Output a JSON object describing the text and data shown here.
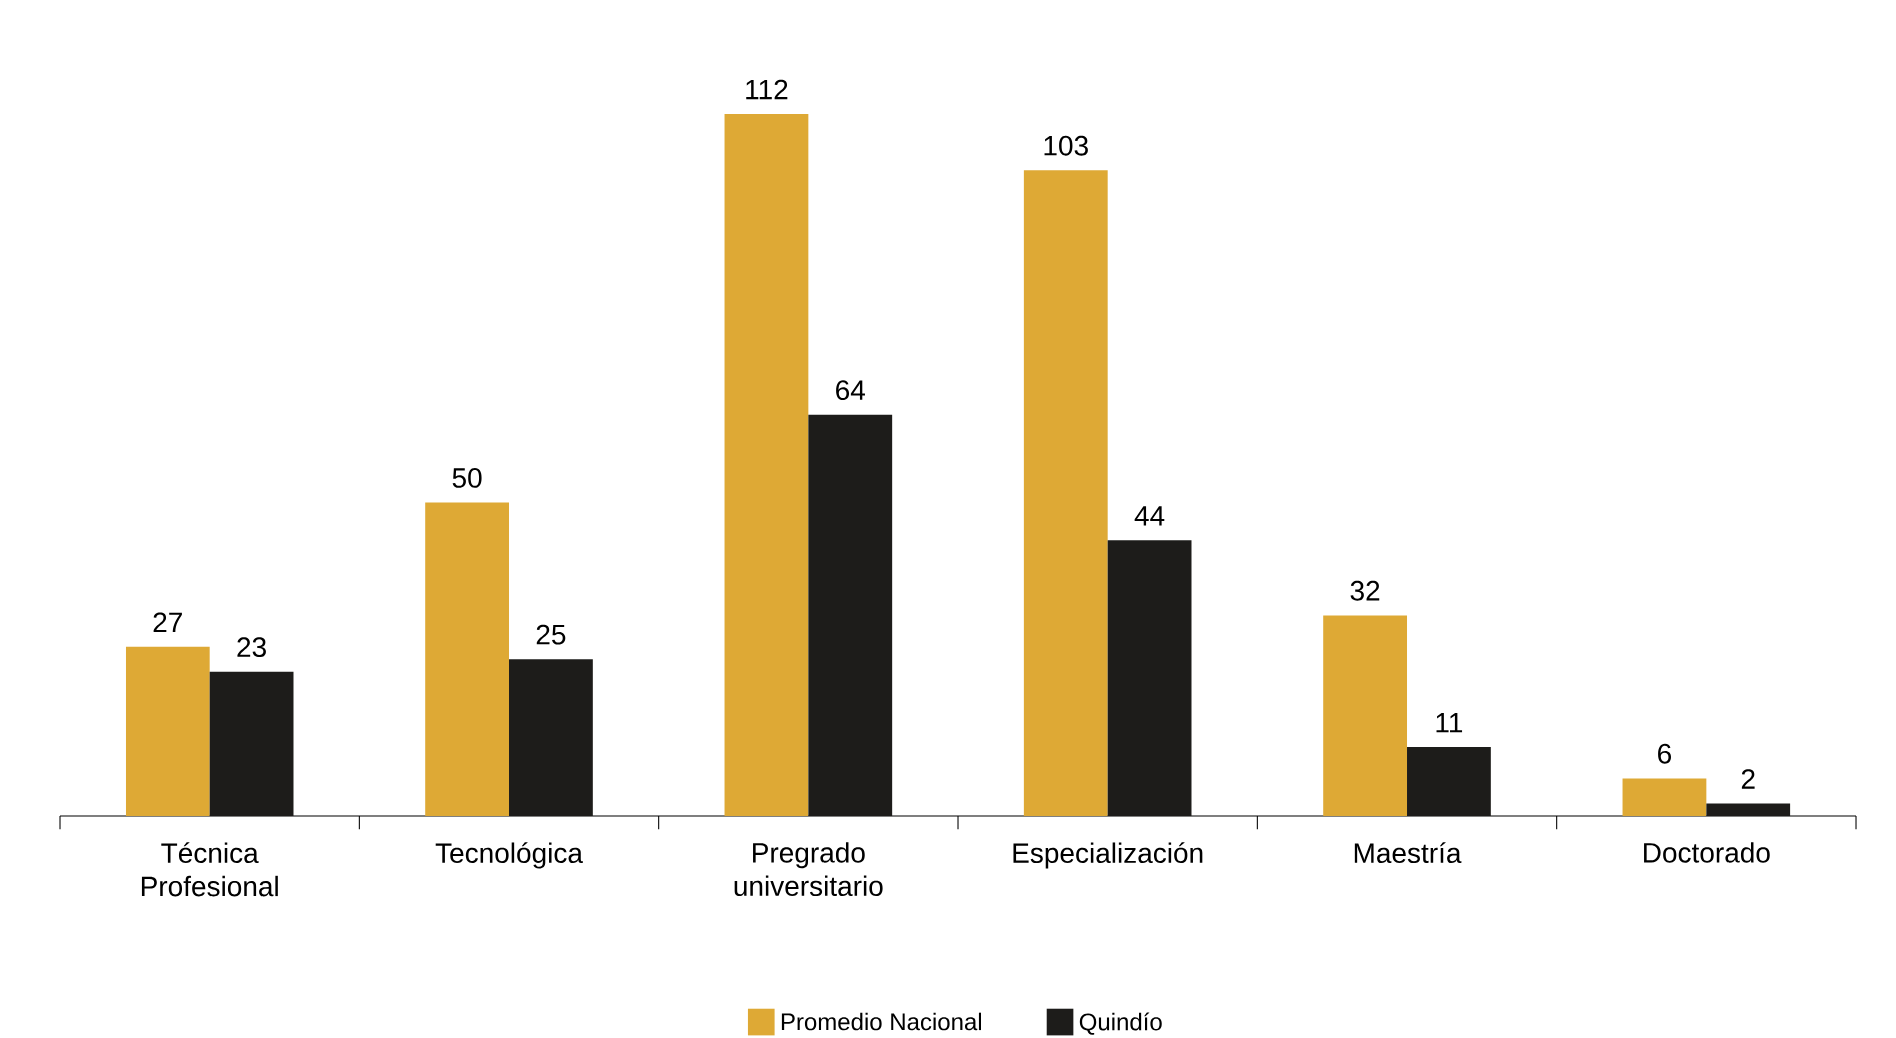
{
  "chart_data": {
    "type": "bar",
    "categories": [
      "Técnica Profesional",
      "Tecnológica",
      "Pregrado universitario",
      "Especialización",
      "Maestría",
      "Doctorado"
    ],
    "series": [
      {
        "name": "Promedio Nacional",
        "color": "#dea935",
        "values": [
          27,
          50,
          112,
          103,
          32,
          6
        ]
      },
      {
        "name": "Quindío",
        "color": "#1d1c1a",
        "values": [
          23,
          25,
          64,
          44,
          11,
          2
        ]
      }
    ],
    "data_labels": true,
    "legend": "bottom"
  }
}
